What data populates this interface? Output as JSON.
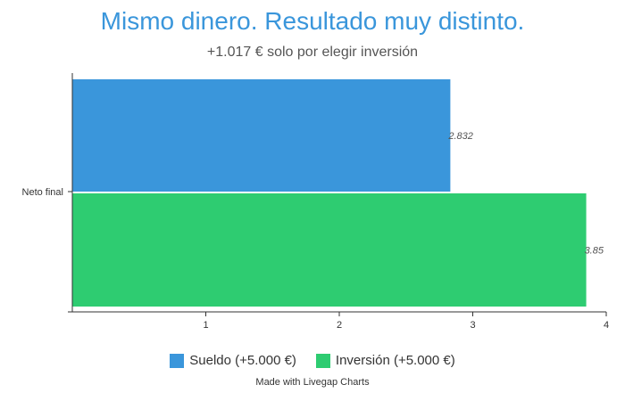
{
  "chart_data": {
    "type": "bar",
    "orientation": "horizontal",
    "title": "Mismo dinero. Resultado muy distinto.",
    "subtitle": "+1.017 € solo por elegir inversión",
    "categories": [
      "Neto final"
    ],
    "series": [
      {
        "name": "Sueldo (+5.000 €)",
        "values": [
          2.832
        ],
        "color": "#3a96db",
        "label": "2.832"
      },
      {
        "name": "Inversión (+5.000 €)",
        "values": [
          3.85
        ],
        "color": "#2ecc71",
        "label": "3.85"
      }
    ],
    "xticks": [
      "1",
      "2",
      "3",
      "4"
    ],
    "xlim": [
      0,
      4
    ],
    "grid": false,
    "legend_position": "bottom"
  },
  "footer": {
    "credit": "Made with Livegap Charts"
  }
}
